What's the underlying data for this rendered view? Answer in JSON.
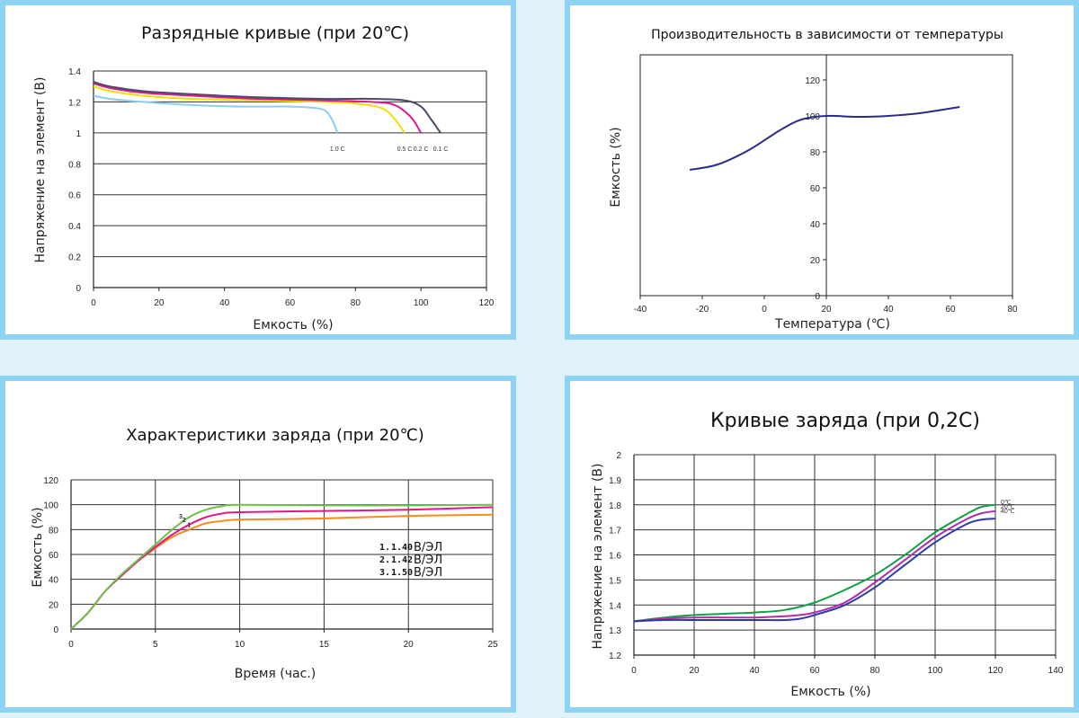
{
  "colors": {
    "border": "#8fd3f4",
    "background": "#dff1fb"
  },
  "chart_data": [
    {
      "id": "discharge",
      "type": "line",
      "title": "Разрядные кривые (при 20℃)",
      "xlabel": "Емкость (%)",
      "ylabel": "Напряжение на элемент (В)",
      "xlim": [
        0,
        120
      ],
      "ylim": [
        0,
        1.4
      ],
      "xticks": [
        "0",
        "20",
        "40",
        "60",
        "80",
        "100",
        "120"
      ],
      "yticks": [
        "0",
        "0.2",
        "0.4",
        "0.6",
        "0.8",
        "1",
        "1.2",
        "1.4"
      ],
      "grid": "horizontal",
      "series": [
        {
          "name": "1.0 C",
          "color": "#8dcdf2",
          "label": "1.0 C",
          "x": [
            0,
            5,
            15,
            30,
            45,
            60,
            68,
            71,
            73,
            74.5
          ],
          "y": [
            1.24,
            1.22,
            1.2,
            1.18,
            1.17,
            1.17,
            1.16,
            1.14,
            1.08,
            1.0
          ]
        },
        {
          "name": "0.5 C",
          "color": "#f2e000",
          "label": "0.5 C",
          "x": [
            0,
            5,
            15,
            30,
            50,
            70,
            80,
            88,
            92,
            95
          ],
          "y": [
            1.3,
            1.27,
            1.24,
            1.22,
            1.21,
            1.2,
            1.19,
            1.16,
            1.09,
            1.0
          ]
        },
        {
          "name": "0.2 C",
          "color": "#e0188a",
          "label": "0.2 C",
          "x": [
            0,
            5,
            15,
            30,
            50,
            70,
            85,
            92,
            97,
            100
          ],
          "y": [
            1.32,
            1.29,
            1.26,
            1.24,
            1.22,
            1.21,
            1.2,
            1.18,
            1.1,
            1.0
          ]
        },
        {
          "name": "0.1 C",
          "color": "#4a4a68",
          "label": "0.1 C",
          "x": [
            0,
            5,
            15,
            30,
            50,
            70,
            85,
            95,
            100,
            103,
            106
          ],
          "y": [
            1.33,
            1.3,
            1.27,
            1.25,
            1.23,
            1.22,
            1.22,
            1.21,
            1.17,
            1.09,
            1.0
          ]
        }
      ]
    },
    {
      "id": "temperature",
      "type": "line",
      "title": "Производительность в зависимости от температуры",
      "xlabel": "Температура (℃)",
      "ylabel": "Емкость (%)",
      "xlim": [
        -40,
        80
      ],
      "ylim": [
        0,
        120
      ],
      "xticks": [
        "-40",
        "-20",
        "0",
        "20",
        "40",
        "60",
        "80"
      ],
      "yticks": [
        "0",
        "20",
        "40",
        "60",
        "80",
        "100",
        "120"
      ],
      "grid": "none",
      "series": [
        {
          "name": "capacity",
          "color": "#2a2a8a",
          "x": [
            -24,
            -15,
            -5,
            5,
            12,
            20,
            30,
            40,
            50,
            63
          ],
          "y": [
            70,
            73,
            81,
            92,
            98,
            100,
            99.5,
            100,
            101.5,
            105
          ]
        }
      ]
    },
    {
      "id": "charge_characteristics",
      "type": "line",
      "title": "Характеристики заряда (при 20℃)",
      "xlabel": "Время (час.)",
      "ylabel": "Емкость (%)",
      "xlim": [
        0,
        25
      ],
      "ylim": [
        0,
        120
      ],
      "xticks": [
        "0",
        "5",
        "10",
        "15",
        "20",
        "25"
      ],
      "yticks": [
        "0",
        "20",
        "40",
        "60",
        "80",
        "100",
        "120"
      ],
      "grid": "both",
      "legend": [
        {
          "num": "1.",
          "value": "1.40",
          "unit": "В/ЭЛ"
        },
        {
          "num": "2.",
          "value": "1.42",
          "unit": "В/ЭЛ"
        },
        {
          "num": "3.",
          "value": "1.50",
          "unit": "В/ЭЛ"
        }
      ],
      "markers": [
        {
          "text": "1",
          "x": 7,
          "y": 82
        },
        {
          "text": "2",
          "x": 6.7,
          "y": 86
        },
        {
          "text": "3",
          "x": 6.5,
          "y": 89
        }
      ],
      "series": [
        {
          "name": "1",
          "color": "#ff8a1e",
          "x": [
            0,
            1,
            2,
            3,
            4,
            5,
            6,
            7,
            8,
            9,
            10,
            15,
            20,
            25
          ],
          "y": [
            0,
            13,
            30,
            43,
            55,
            65,
            74,
            80,
            85,
            87,
            88,
            89,
            91,
            92
          ]
        },
        {
          "name": "2",
          "color": "#e0188a",
          "x": [
            0,
            1,
            2,
            3,
            4,
            5,
            6,
            7,
            8,
            9,
            10,
            15,
            20,
            25
          ],
          "y": [
            0,
            13,
            30,
            43,
            55,
            66,
            76,
            84,
            90,
            93,
            94,
            95,
            96,
            98
          ]
        },
        {
          "name": "3",
          "color": "#6dc04a",
          "x": [
            0,
            1,
            2,
            3,
            4,
            5,
            6,
            7,
            8,
            9,
            10,
            15,
            20,
            25
          ],
          "y": [
            0,
            13,
            30,
            44,
            56,
            68,
            80,
            90,
            96,
            99,
            100,
            99.5,
            99.5,
            100
          ]
        }
      ]
    },
    {
      "id": "charge_curves",
      "type": "line",
      "title": "Кривые заряда (при 0,2С)",
      "xlabel": "Емкость (%)",
      "ylabel": "Напряжение на элемент (В)",
      "xlim": [
        0,
        140
      ],
      "ylim": [
        1.2,
        2
      ],
      "xticks": [
        "0",
        "20",
        "40",
        "60",
        "80",
        "100",
        "120",
        "140"
      ],
      "yticks": [
        "1.2",
        "1.3",
        "1.4",
        "1.5",
        "1.6",
        "1.7",
        "1.8",
        "1.9",
        "2"
      ],
      "grid": "both",
      "series": [
        {
          "name": "0℃",
          "color": "#11a046",
          "label": "0℃",
          "x": [
            0,
            10,
            20,
            30,
            40,
            50,
            60,
            70,
            80,
            90,
            100,
            110,
            115,
            120
          ],
          "y": [
            1.335,
            1.35,
            1.36,
            1.365,
            1.37,
            1.38,
            1.41,
            1.46,
            1.52,
            1.6,
            1.69,
            1.76,
            1.79,
            1.8
          ]
        },
        {
          "name": "20℃",
          "color": "#b02ab0",
          "label": "20℃",
          "x": [
            0,
            10,
            20,
            30,
            40,
            50,
            55,
            60,
            70,
            80,
            90,
            100,
            110,
            115,
            120
          ],
          "y": [
            1.335,
            1.345,
            1.35,
            1.35,
            1.35,
            1.355,
            1.36,
            1.37,
            1.41,
            1.49,
            1.58,
            1.67,
            1.74,
            1.765,
            1.775
          ]
        },
        {
          "name": "40℃",
          "color": "#2d3aa6",
          "label": "40℃",
          "x": [
            0,
            10,
            20,
            30,
            40,
            50,
            55,
            60,
            70,
            80,
            90,
            100,
            110,
            115,
            120
          ],
          "y": [
            1.335,
            1.34,
            1.34,
            1.34,
            1.34,
            1.34,
            1.345,
            1.36,
            1.4,
            1.47,
            1.56,
            1.65,
            1.72,
            1.74,
            1.745
          ]
        }
      ]
    }
  ]
}
